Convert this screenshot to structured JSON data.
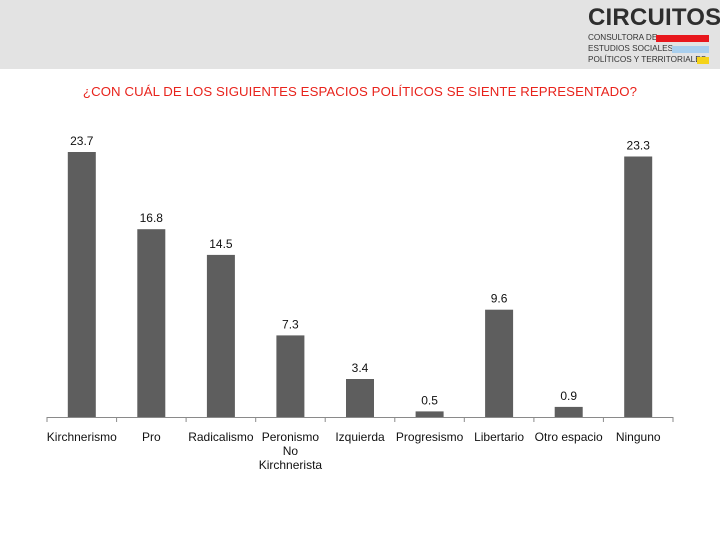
{
  "logo": {
    "title": "CIRCUITOS",
    "lines": [
      "CONSULTORA DE",
      "ESTUDIOS SOCIALES,",
      "POLÍTICOS Y TERRITORIALES"
    ],
    "bar_colors": [
      "#e8171d",
      "#a9cfee",
      "#f5d31a"
    ]
  },
  "colors": {
    "bar": "#5e5e5e",
    "title": "#e8231c",
    "header_band": "#e3e3e3"
  },
  "chart_data": {
    "type": "bar",
    "title": "¿CON CUÁL DE LOS SIGUIENTES ESPACIOS POLÍTICOS SE SIENTE REPRESENTADO?",
    "categories": [
      "Kirchnerismo",
      "Pro",
      "Radicalismo",
      "Peronismo No Kirchnerista",
      "Izquierda",
      "Progresismo",
      "Libertario",
      "Otro espacio",
      "Ninguno"
    ],
    "category_lines": [
      [
        "Kirchnerismo"
      ],
      [
        "Pro"
      ],
      [
        "Radicalismo"
      ],
      [
        "Peronismo",
        "No",
        "Kirchnerista"
      ],
      [
        "Izquierda"
      ],
      [
        "Progresismo"
      ],
      [
        "Libertario"
      ],
      [
        "Otro espacio"
      ],
      [
        "Ninguno"
      ]
    ],
    "values": [
      23.7,
      16.8,
      14.5,
      7.3,
      3.4,
      0.5,
      9.6,
      0.9,
      23.3
    ],
    "value_labels": [
      "23.7",
      "16.8",
      "14.5",
      "7.3",
      "3.4",
      "0.5",
      "9.6",
      "0.9",
      "23.3"
    ],
    "xlabel": "",
    "ylabel": "",
    "ylim": [
      0,
      23.7
    ],
    "grid": false,
    "legend": "none"
  }
}
